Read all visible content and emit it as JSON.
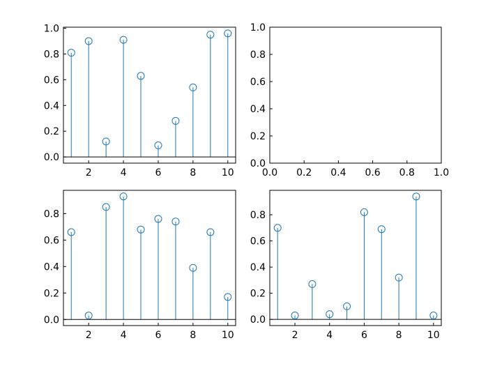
{
  "figure": {
    "background": "#ffffff",
    "stem_color": "#1f77b4",
    "baseline_color": "#000000"
  },
  "chart_data": [
    {
      "type": "stem",
      "position": "top-left",
      "x": [
        1,
        2,
        3,
        4,
        5,
        6,
        7,
        8,
        9,
        10
      ],
      "values": [
        0.81,
        0.9,
        0.12,
        0.91,
        0.63,
        0.09,
        0.28,
        0.54,
        0.95,
        0.96
      ],
      "xlim": [
        0.55,
        10.45
      ],
      "ylim": [
        -0.048,
        1.008
      ],
      "xticks": [
        2,
        4,
        6,
        8,
        10
      ],
      "xtick_labels": [
        "2",
        "4",
        "6",
        "8",
        "10"
      ],
      "yticks": [
        0,
        0.2,
        0.4,
        0.6,
        0.8,
        1.0
      ],
      "ytick_labels": [
        "0.0",
        "0.2",
        "0.4",
        "0.6",
        "0.8",
        "1.0"
      ],
      "grid": false
    },
    {
      "type": "empty",
      "position": "top-right",
      "x": [],
      "values": [],
      "xlim": [
        0,
        1
      ],
      "ylim": [
        0,
        1
      ],
      "xticks": [
        0,
        0.2,
        0.4,
        0.6,
        0.8,
        1.0
      ],
      "xtick_labels": [
        "0.0",
        "0.2",
        "0.4",
        "0.6",
        "0.8",
        "1.0"
      ],
      "yticks": [
        0,
        0.2,
        0.4,
        0.6,
        0.8,
        1.0
      ],
      "ytick_labels": [
        "0.0",
        "0.2",
        "0.4",
        "0.6",
        "0.8",
        "1.0"
      ],
      "grid": false
    },
    {
      "type": "stem",
      "position": "bottom-left",
      "x": [
        1,
        2,
        3,
        4,
        5,
        6,
        7,
        8,
        9,
        10
      ],
      "values": [
        0.66,
        0.03,
        0.85,
        0.93,
        0.68,
        0.76,
        0.74,
        0.39,
        0.66,
        0.17
      ],
      "xlim": [
        0.55,
        10.45
      ],
      "ylim": [
        -0.046,
        0.976
      ],
      "xticks": [
        2,
        4,
        6,
        8,
        10
      ],
      "xtick_labels": [
        "2",
        "4",
        "6",
        "8",
        "10"
      ],
      "yticks": [
        0,
        0.2,
        0.4,
        0.6,
        0.8
      ],
      "ytick_labels": [
        "0.0",
        "0.2",
        "0.4",
        "0.6",
        "0.8"
      ],
      "grid": false
    },
    {
      "type": "stem",
      "position": "bottom-right",
      "x": [
        1,
        2,
        3,
        4,
        5,
        6,
        7,
        8,
        9,
        10
      ],
      "values": [
        0.7,
        0.03,
        0.27,
        0.04,
        0.1,
        0.82,
        0.69,
        0.32,
        0.94,
        0.03
      ],
      "xlim": [
        0.55,
        10.45
      ],
      "ylim": [
        -0.047,
        0.987
      ],
      "xticks": [
        2,
        4,
        6,
        8,
        10
      ],
      "xtick_labels": [
        "2",
        "4",
        "6",
        "8",
        "10"
      ],
      "yticks": [
        0,
        0.2,
        0.4,
        0.6,
        0.8
      ],
      "ytick_labels": [
        "0.0",
        "0.2",
        "0.4",
        "0.6",
        "0.8"
      ],
      "grid": false
    }
  ]
}
